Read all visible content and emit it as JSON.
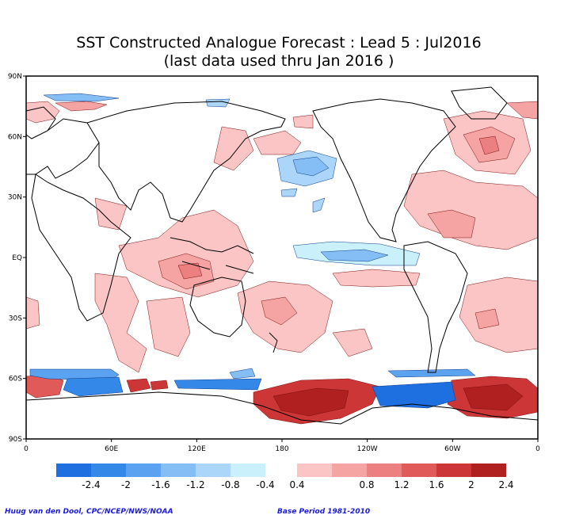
{
  "title": {
    "line1": "SST Constructed Analogue Forecast : Lead 5 : Jul2016",
    "line2": "(last data used thru Jan 2016 )"
  },
  "lat_ticks": [
    "90N",
    "60N",
    "30N",
    "EQ",
    "30S",
    "60S",
    "90S"
  ],
  "lon_ticks": [
    "0",
    "60E",
    "120E",
    "180",
    "120W",
    "60W",
    "0"
  ],
  "colorbar": {
    "labels": [
      "-2.4",
      "-2",
      "-1.6",
      "-1.2",
      "-0.8",
      "-0.4",
      "0.4",
      "0.8",
      "1.2",
      "1.6",
      "2",
      "2.4"
    ],
    "neg_colors": [
      "#1e6fe0",
      "#3488e8",
      "#5ba2f0",
      "#85bdf5",
      "#abd6fa",
      "#c9f0fb"
    ],
    "pos_colors": [
      "#fcc5c5",
      "#f5a3a3",
      "#ec8080",
      "#e05a5a",
      "#cc3636",
      "#b02020"
    ]
  },
  "credits": {
    "left": "Huug van den Dool, CPC/NCEP/NWS/NOAA",
    "right": "Base Period 1981-2010"
  }
}
